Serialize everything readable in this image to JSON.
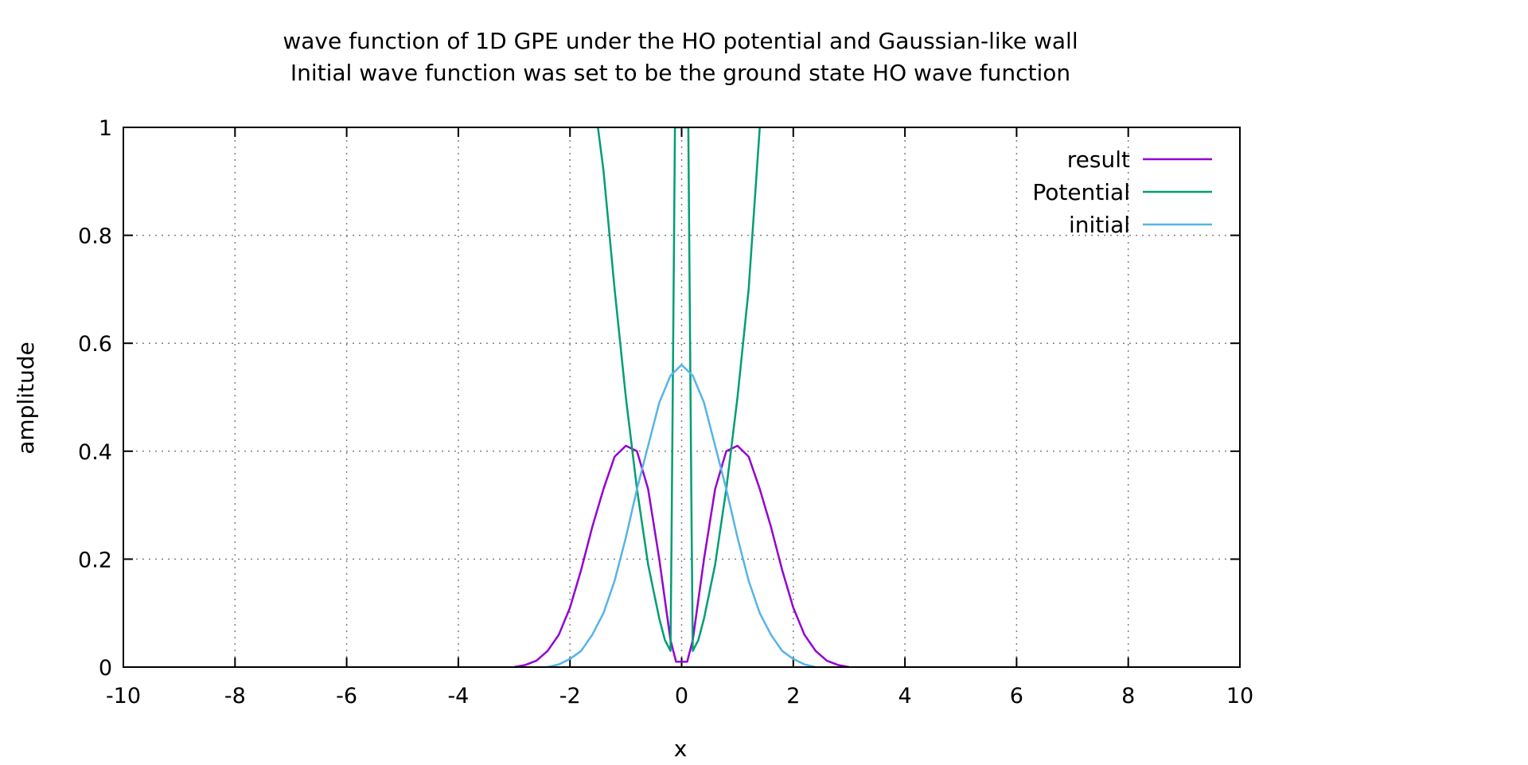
{
  "chart_data": {
    "type": "line",
    "title": "wave function of 1D GPE under the HO potential and Gaussian-like wall",
    "subtitle": "Initial wave function was set to be the ground state HO wave function",
    "xlabel": "x",
    "ylabel": "amplitude",
    "xlim": [
      -10,
      10
    ],
    "ylim": [
      0,
      1
    ],
    "x_ticks": [
      "-10",
      "-8",
      "-6",
      "-4",
      "-2",
      "0",
      "2",
      "4",
      "6",
      "8",
      "10"
    ],
    "y_ticks": [
      "0",
      "0.2",
      "0.4",
      "0.6",
      "0.8",
      "1"
    ],
    "grid": true,
    "legend_position": "top-right",
    "series": [
      {
        "name": "result",
        "color": "#9400d3",
        "x": [
          -3.0,
          -2.8,
          -2.6,
          -2.4,
          -2.2,
          -2.0,
          -1.8,
          -1.6,
          -1.4,
          -1.2,
          -1.0,
          -0.8,
          -0.6,
          -0.4,
          -0.2,
          -0.1,
          0.0,
          0.1,
          0.2,
          0.4,
          0.6,
          0.8,
          1.0,
          1.2,
          1.4,
          1.6,
          1.8,
          2.0,
          2.2,
          2.4,
          2.6,
          2.8,
          3.0
        ],
        "y": [
          0.0,
          0.004,
          0.012,
          0.03,
          0.06,
          0.11,
          0.18,
          0.26,
          0.33,
          0.39,
          0.41,
          0.4,
          0.33,
          0.2,
          0.05,
          0.01,
          0.01,
          0.01,
          0.05,
          0.2,
          0.33,
          0.4,
          0.41,
          0.39,
          0.33,
          0.26,
          0.18,
          0.11,
          0.06,
          0.03,
          0.012,
          0.004,
          0.0
        ]
      },
      {
        "name": "Potential",
        "color": "#009e73",
        "x": [
          -1.5,
          -1.4,
          -1.2,
          -1.0,
          -0.8,
          -0.6,
          -0.4,
          -0.3,
          -0.2,
          -0.18,
          -0.16,
          -0.14,
          -0.12,
          0.12,
          0.14,
          0.16,
          0.18,
          0.2,
          0.3,
          0.4,
          0.6,
          0.8,
          1.0,
          1.2,
          1.4
        ],
        "y": [
          1.0,
          0.92,
          0.7,
          0.5,
          0.33,
          0.19,
          0.09,
          0.05,
          0.03,
          0.25,
          0.5,
          0.75,
          1.0,
          1.0,
          0.75,
          0.5,
          0.25,
          0.03,
          0.05,
          0.09,
          0.19,
          0.33,
          0.5,
          0.7,
          1.0
        ]
      },
      {
        "name": "initial",
        "color": "#56b4e9",
        "x": [
          -2.4,
          -2.2,
          -2.0,
          -1.8,
          -1.6,
          -1.4,
          -1.2,
          -1.0,
          -0.8,
          -0.6,
          -0.4,
          -0.2,
          0.0,
          0.2,
          0.4,
          0.6,
          0.8,
          1.0,
          1.2,
          1.4,
          1.6,
          1.8,
          2.0,
          2.2,
          2.4
        ],
        "y": [
          0.0,
          0.005,
          0.015,
          0.03,
          0.06,
          0.1,
          0.16,
          0.24,
          0.33,
          0.41,
          0.49,
          0.54,
          0.56,
          0.54,
          0.49,
          0.41,
          0.33,
          0.24,
          0.16,
          0.1,
          0.06,
          0.03,
          0.015,
          0.005,
          0.0
        ]
      }
    ]
  }
}
